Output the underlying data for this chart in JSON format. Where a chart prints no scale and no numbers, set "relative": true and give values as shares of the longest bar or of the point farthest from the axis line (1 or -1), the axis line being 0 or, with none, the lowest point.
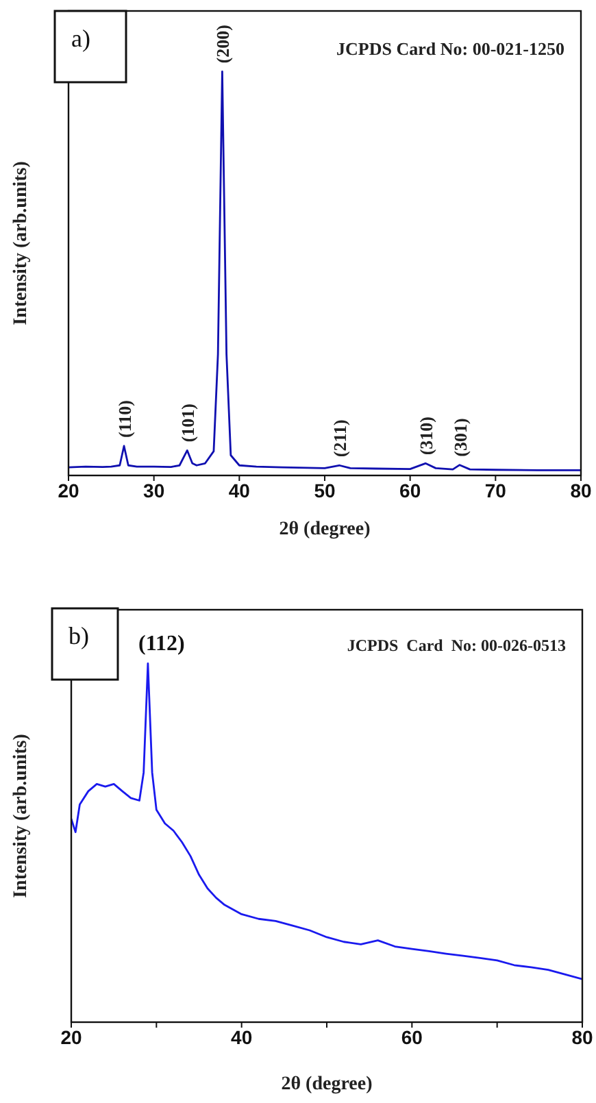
{
  "chart_data": [
    {
      "type": "line",
      "relative": true,
      "xlabel": "2θ (degree)",
      "ylabel": "Intensity (arb.units)",
      "xlim": [
        20,
        80
      ],
      "xticks": [
        20,
        30,
        40,
        50,
        60,
        70,
        80
      ],
      "grid": false,
      "legend": false,
      "marker": "none",
      "line_style": "solid",
      "annotations": [
        "a)",
        "JCPDS Card No: 00-021-1250",
        {
          "text": "(110)",
          "x": 26.5,
          "y": 0.073
        },
        {
          "text": "(101)",
          "x": 33.9,
          "y": 0.062
        },
        {
          "text": "(200)",
          "x": 38,
          "y": 1
        },
        {
          "text": "(211)",
          "x": 51.7,
          "y": 0.025
        },
        {
          "text": "(310)",
          "x": 61.8,
          "y": 0.03
        },
        {
          "text": "(301)",
          "x": 65.8,
          "y": 0.026
        }
      ],
      "series": [
        {
          "color": "#1010b0",
          "x": [
            20,
            22,
            24,
            25,
            26,
            26.5,
            27,
            28,
            30,
            32,
            33,
            33.9,
            34.5,
            35,
            36,
            37,
            37.5,
            38,
            38.5,
            39,
            40,
            42,
            45,
            48,
            50,
            51.7,
            53,
            56,
            60,
            61.8,
            63,
            65,
            65.8,
            67,
            70,
            75,
            80
          ],
          "values": [
            0.02,
            0.022,
            0.021,
            0.022,
            0.025,
            0.073,
            0.025,
            0.022,
            0.022,
            0.021,
            0.025,
            0.062,
            0.03,
            0.025,
            0.03,
            0.06,
            0.3,
            1,
            0.3,
            0.05,
            0.025,
            0.022,
            0.02,
            0.019,
            0.018,
            0.025,
            0.018,
            0.017,
            0.016,
            0.03,
            0.018,
            0.015,
            0.026,
            0.015,
            0.014,
            0.013,
            0.013
          ]
        }
      ]
    },
    {
      "type": "line",
      "relative": true,
      "xlabel": "2θ (degree)",
      "ylabel": "Intensity (arb.units)",
      "xlim": [
        20,
        80
      ],
      "xticks": [
        20,
        {
          "value": 30,
          "label": null
        },
        40,
        {
          "value": 50,
          "label": null
        },
        60,
        {
          "value": 70,
          "label": null
        },
        80
      ],
      "grid": false,
      "legend": false,
      "marker": "none",
      "line_style": "solid",
      "annotations": [
        "b)",
        "JCPDS  Card  No: 00-026-0513",
        {
          "text": "(112)",
          "x": 29,
          "y": 1
        }
      ],
      "series": [
        {
          "color": "#1a1aee",
          "x": [
            20,
            20.5,
            21,
            22,
            23,
            24,
            25,
            26,
            27,
            28,
            28.5,
            29,
            29.5,
            30,
            31,
            32,
            33,
            34,
            35,
            36,
            37,
            38,
            40,
            42,
            44,
            46,
            48,
            50,
            52,
            54,
            56,
            58,
            60,
            62,
            64,
            66,
            68,
            70,
            72,
            74,
            76,
            78,
            80
          ],
          "values": [
            0.567,
            0.53,
            0.607,
            0.644,
            0.664,
            0.657,
            0.664,
            0.644,
            0.625,
            0.618,
            0.696,
            1,
            0.696,
            0.592,
            0.554,
            0.534,
            0.502,
            0.463,
            0.411,
            0.373,
            0.347,
            0.327,
            0.301,
            0.288,
            0.282,
            0.269,
            0.256,
            0.237,
            0.224,
            0.217,
            0.228,
            0.211,
            0.204,
            0.198,
            0.191,
            0.185,
            0.179,
            0.172,
            0.159,
            0.153,
            0.146,
            0.133,
            0.12
          ]
        }
      ]
    }
  ]
}
